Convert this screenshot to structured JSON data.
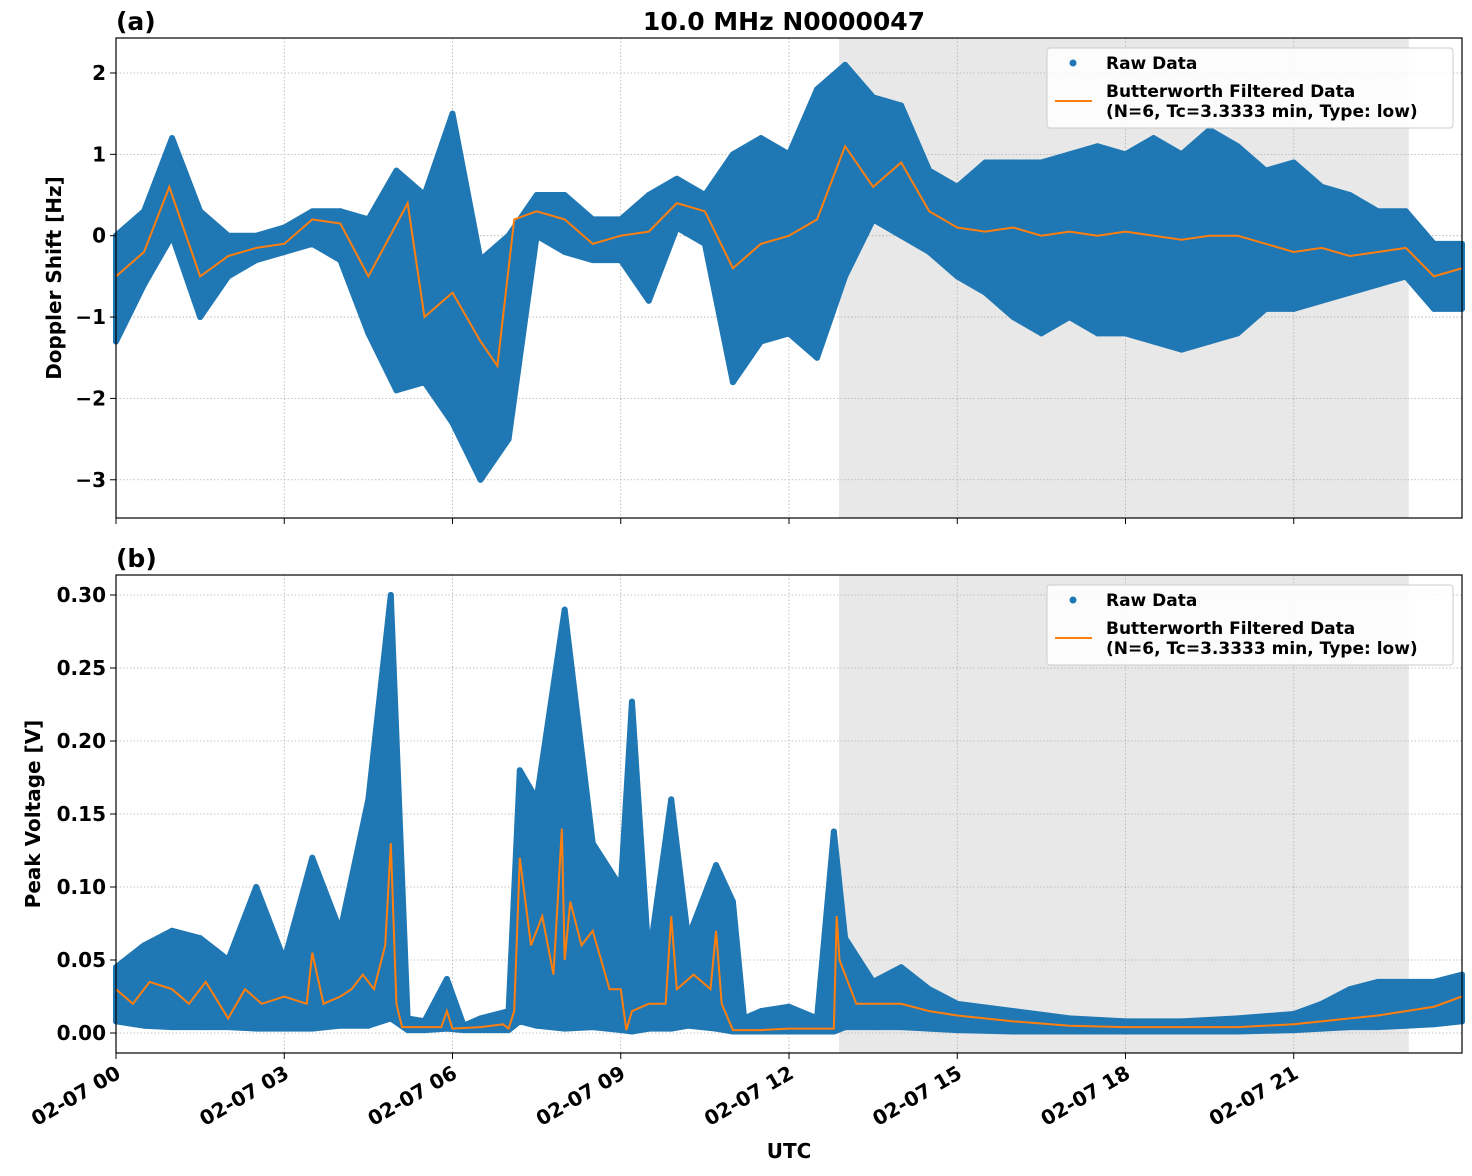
{
  "chart_data": [
    {
      "type": "scatter+line",
      "panel_label": "(a)",
      "title": "10.0 MHz N0000047",
      "xlabel": "",
      "ylabel": "Doppler Shift [Hz]",
      "xlim_hours": [
        0,
        24
      ],
      "ylim": [
        -3.47,
        2.43
      ],
      "yticks": [
        2,
        1,
        0,
        -1,
        -2,
        -3
      ],
      "ytick_labels": [
        "2",
        "1",
        "0",
        "−1",
        "−2",
        "−3"
      ],
      "grid": true,
      "shaded_region_hours": [
        12.89,
        23.05
      ],
      "shade_color": "#e8e8e8",
      "legend": {
        "placement": "top-right",
        "entries": [
          "Raw Data",
          "Butterworth Filtered Data",
          "(N=6, Tc=3.3333 min, Type: low)"
        ]
      },
      "series": [
        {
          "name": "Raw Data",
          "kind": "scatter-envelope",
          "color": "#1f77b4",
          "x": [
            0,
            0.5,
            1,
            1.5,
            2,
            2.5,
            3,
            3.5,
            4,
            4.5,
            5,
            5.5,
            6,
            6.5,
            7,
            7.5,
            8,
            8.5,
            9,
            9.5,
            10,
            10.5,
            11,
            11.5,
            12,
            12.5,
            13,
            13.5,
            14,
            14.5,
            15,
            15.5,
            16,
            16.5,
            17,
            17.5,
            18,
            18.5,
            19,
            19.5,
            20,
            20.5,
            21,
            21.5,
            22,
            22.5,
            23,
            23.5,
            24
          ],
          "min": [
            -1.3,
            -0.6,
            0.0,
            -1.0,
            -0.5,
            -0.3,
            -0.2,
            -0.1,
            -0.3,
            -1.2,
            -1.9,
            -1.8,
            -2.3,
            -3.0,
            -2.5,
            0.0,
            -0.2,
            -0.3,
            -0.3,
            -0.8,
            0.1,
            -0.1,
            -1.8,
            -1.3,
            -1.2,
            -1.5,
            -0.5,
            0.2,
            0.0,
            -0.2,
            -0.5,
            -0.7,
            -1.0,
            -1.2,
            -1.0,
            -1.2,
            -1.2,
            -1.3,
            -1.4,
            -1.3,
            -1.2,
            -0.9,
            -0.9,
            -0.8,
            -0.7,
            -0.6,
            -0.5,
            -0.9,
            -0.9
          ],
          "max": [
            0.0,
            0.3,
            1.2,
            0.3,
            0.0,
            0.0,
            0.1,
            0.3,
            0.3,
            0.2,
            0.8,
            0.5,
            1.5,
            -0.3,
            0.0,
            0.5,
            0.5,
            0.2,
            0.2,
            0.5,
            0.7,
            0.5,
            1.0,
            1.2,
            1.0,
            1.8,
            2.1,
            1.7,
            1.6,
            0.8,
            0.6,
            0.9,
            0.9,
            0.9,
            1.0,
            1.1,
            1.0,
            1.2,
            1.0,
            1.3,
            1.1,
            0.8,
            0.9,
            0.6,
            0.5,
            0.3,
            0.3,
            -0.1,
            -0.1
          ]
        },
        {
          "name": "Butterworth Filtered Data",
          "kind": "line",
          "color": "#ff7f0e",
          "x": [
            0,
            0.5,
            0.95,
            1.5,
            2,
            2.5,
            3,
            3.5,
            4,
            4.5,
            5.2,
            5.5,
            6,
            6.5,
            6.8,
            7.1,
            7.5,
            8,
            8.5,
            9,
            9.5,
            10,
            10.5,
            11,
            11.5,
            12,
            12.5,
            13,
            13.5,
            14,
            14.5,
            15,
            15.5,
            16,
            16.5,
            17,
            17.5,
            18,
            18.5,
            19,
            19.5,
            20,
            20.5,
            21,
            21.5,
            22,
            22.5,
            23,
            23.5,
            24
          ],
          "y": [
            -0.5,
            -0.2,
            0.6,
            -0.5,
            -0.25,
            -0.15,
            -0.1,
            0.2,
            0.15,
            -0.5,
            0.4,
            -1.0,
            -0.7,
            -1.3,
            -1.6,
            0.2,
            0.3,
            0.2,
            -0.1,
            0.0,
            0.05,
            0.4,
            0.3,
            -0.4,
            -0.1,
            0.0,
            0.2,
            1.1,
            0.6,
            0.9,
            0.3,
            0.1,
            0.05,
            0.1,
            0.0,
            0.05,
            0.0,
            0.05,
            0.0,
            -0.05,
            0.0,
            0.0,
            -0.1,
            -0.2,
            -0.15,
            -0.25,
            -0.2,
            -0.15,
            -0.5,
            -0.4
          ]
        }
      ]
    },
    {
      "type": "scatter+line",
      "panel_label": "(b)",
      "title": "",
      "xlabel": "UTC",
      "ylabel": "Peak Voltage [V]",
      "xlim_hours": [
        0,
        24
      ],
      "ylim": [
        -0.0137,
        0.3137
      ],
      "yticks": [
        0.3,
        0.25,
        0.2,
        0.15,
        0.1,
        0.05,
        0.0
      ],
      "ytick_labels": [
        "0.30",
        "0.25",
        "0.20",
        "0.15",
        "0.10",
        "0.05",
        "0.00"
      ],
      "xticks_hours": [
        0,
        3,
        6,
        9,
        12,
        15,
        18,
        21
      ],
      "xtick_labels": [
        "02-07 00",
        "02-07 03",
        "02-07 06",
        "02-07 09",
        "02-07 12",
        "02-07 15",
        "02-07 18",
        "02-07 21"
      ],
      "grid": true,
      "shaded_region_hours": [
        12.89,
        23.05
      ],
      "shade_color": "#e8e8e8",
      "legend": {
        "placement": "top-right",
        "entries": [
          "Raw Data",
          "Butterworth Filtered Data",
          "(N=6, Tc=3.3333 min, Type: low)"
        ]
      },
      "series": [
        {
          "name": "Raw Data",
          "kind": "scatter-envelope",
          "color": "#1f77b4",
          "x": [
            0,
            0.5,
            1,
            1.5,
            2,
            2.5,
            3,
            3.5,
            4,
            4.5,
            4.9,
            5.2,
            5.5,
            5.9,
            6.2,
            6.5,
            7,
            7.2,
            7.5,
            8,
            8.5,
            9,
            9.2,
            9.5,
            9.9,
            10.2,
            10.7,
            11,
            11.2,
            11.5,
            12,
            12.5,
            12.8,
            13,
            13.5,
            14,
            14.5,
            15,
            16,
            17,
            18,
            19,
            20,
            21,
            21.5,
            22,
            22.5,
            23,
            23.5,
            24
          ],
          "min": [
            0.008,
            0.005,
            0.004,
            0.004,
            0.004,
            0.003,
            0.003,
            0.003,
            0.005,
            0.005,
            0.01,
            0.002,
            0.002,
            0.003,
            0.002,
            0.002,
            0.002,
            0.008,
            0.005,
            0.003,
            0.004,
            0.002,
            0.001,
            0.003,
            0.003,
            0.005,
            0.003,
            0.001,
            0.001,
            0.001,
            0.001,
            0.001,
            0.001,
            0.004,
            0.004,
            0.004,
            0.003,
            0.002,
            0.001,
            0.001,
            0.001,
            0.001,
            0.001,
            0.002,
            0.003,
            0.004,
            0.004,
            0.005,
            0.006,
            0.008
          ],
          "max": [
            0.045,
            0.06,
            0.07,
            0.065,
            0.05,
            0.1,
            0.05,
            0.12,
            0.07,
            0.16,
            0.3,
            0.01,
            0.008,
            0.037,
            0.005,
            0.01,
            0.015,
            0.18,
            0.16,
            0.29,
            0.13,
            0.1,
            0.227,
            0.05,
            0.16,
            0.065,
            0.115,
            0.09,
            0.01,
            0.015,
            0.018,
            0.01,
            0.138,
            0.065,
            0.035,
            0.045,
            0.03,
            0.02,
            0.015,
            0.01,
            0.008,
            0.008,
            0.01,
            0.013,
            0.02,
            0.03,
            0.035,
            0.035,
            0.035,
            0.04
          ]
        },
        {
          "name": "Butterworth Filtered Data",
          "kind": "line",
          "color": "#ff7f0e",
          "x": [
            0,
            0.3,
            0.6,
            1,
            1.3,
            1.6,
            2,
            2.3,
            2.6,
            3,
            3.4,
            3.5,
            3.7,
            4,
            4.2,
            4.4,
            4.6,
            4.8,
            4.9,
            5.0,
            5.1,
            5.5,
            5.8,
            5.9,
            6.0,
            6.5,
            6.9,
            7.0,
            7.1,
            7.2,
            7.4,
            7.6,
            7.8,
            7.95,
            8.0,
            8.1,
            8.3,
            8.5,
            8.8,
            9.0,
            9.1,
            9.2,
            9.5,
            9.8,
            9.9,
            10.0,
            10.3,
            10.6,
            10.7,
            10.8,
            11.0,
            11.5,
            12,
            12.5,
            12.8,
            12.85,
            12.9,
            13.2,
            13.5,
            14,
            14.5,
            15,
            16,
            17,
            18,
            19,
            20,
            21,
            22,
            22.5,
            23,
            23.5,
            24
          ],
          "y": [
            0.03,
            0.02,
            0.035,
            0.03,
            0.02,
            0.035,
            0.01,
            0.03,
            0.02,
            0.025,
            0.02,
            0.055,
            0.02,
            0.025,
            0.03,
            0.04,
            0.03,
            0.06,
            0.13,
            0.02,
            0.004,
            0.004,
            0.004,
            0.015,
            0.003,
            0.004,
            0.006,
            0.003,
            0.015,
            0.12,
            0.06,
            0.08,
            0.04,
            0.14,
            0.05,
            0.09,
            0.06,
            0.07,
            0.03,
            0.03,
            0.002,
            0.015,
            0.02,
            0.02,
            0.08,
            0.03,
            0.04,
            0.03,
            0.07,
            0.02,
            0.002,
            0.002,
            0.003,
            0.003,
            0.003,
            0.08,
            0.05,
            0.02,
            0.02,
            0.02,
            0.015,
            0.012,
            0.008,
            0.005,
            0.004,
            0.004,
            0.004,
            0.006,
            0.01,
            0.012,
            0.015,
            0.018,
            0.025
          ]
        }
      ]
    }
  ]
}
